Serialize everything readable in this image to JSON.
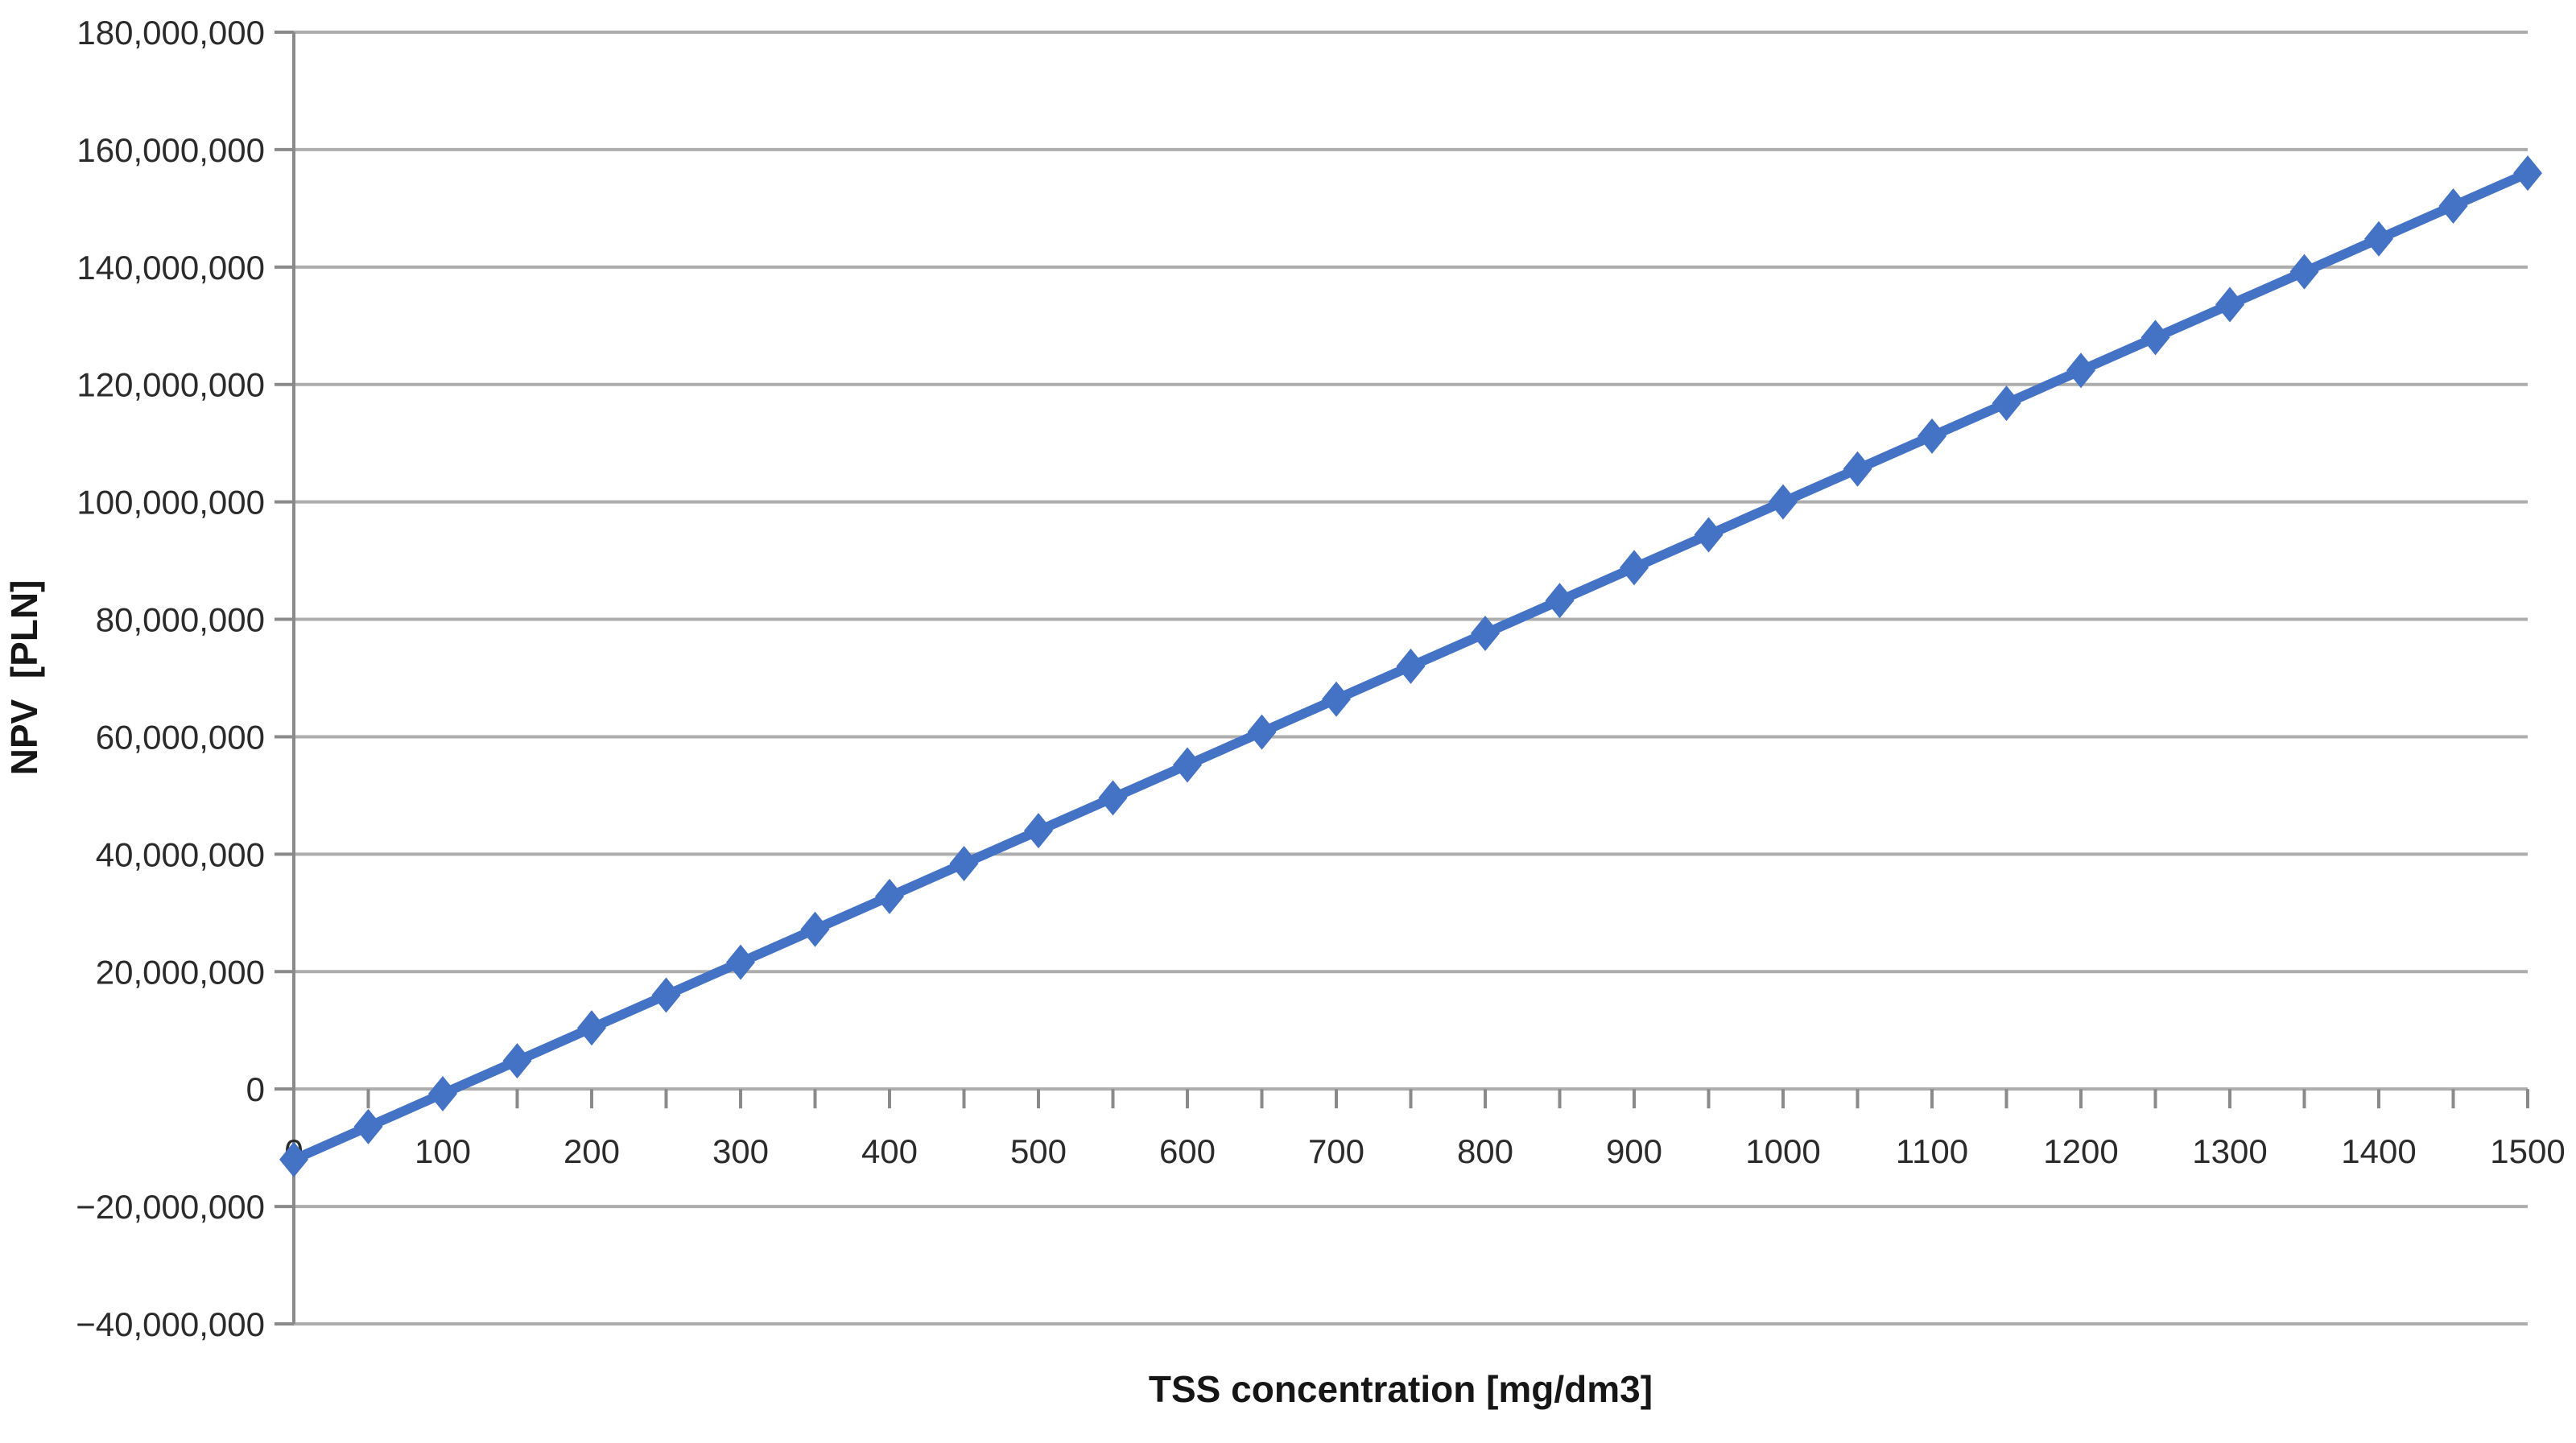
{
  "chart_data": {
    "type": "line",
    "title": "",
    "xlabel": "TSS concentration [mg/dm3]",
    "ylabel": "NPV  [PLN]",
    "x": [
      0,
      50,
      100,
      150,
      200,
      250,
      300,
      350,
      400,
      450,
      500,
      550,
      600,
      650,
      700,
      750,
      800,
      850,
      900,
      950,
      1000,
      1050,
      1100,
      1150,
      1200,
      1250,
      1300,
      1350,
      1400,
      1450,
      1500
    ],
    "series": [
      {
        "name": "NPV",
        "values": [
          -12000000,
          -6400000,
          -800000,
          4800000,
          10400000,
          16000000,
          21600000,
          27200000,
          32800000,
          38400000,
          44000000,
          49600000,
          55200000,
          60800000,
          66400000,
          72000000,
          77600000,
          83200000,
          88800000,
          94400000,
          100000000,
          105600000,
          111200000,
          116800000,
          122400000,
          128000000,
          133600000,
          139200000,
          144800000,
          150400000,
          156000000
        ]
      }
    ],
    "xlim": [
      0,
      1500
    ],
    "ylim": [
      -40000000,
      180000000
    ],
    "y_tick_step": 20000000,
    "x_label_step": 100,
    "x_minor_tick_step": 50,
    "y_tick_labels": [
      "180,000,000",
      "160,000,000",
      "140,000,000",
      "120,000,000",
      "100,000,000",
      "80,000,000",
      "60,000,000",
      "40,000,000",
      "20,000,000",
      "0",
      "−20,000,000",
      "−40,000,000"
    ],
    "x_tick_labels": [
      "0",
      "100",
      "200",
      "300",
      "400",
      "500",
      "600",
      "700",
      "800",
      "900",
      "1000",
      "1100",
      "1200",
      "1300",
      "1400",
      "1500"
    ],
    "grid": "horizontal",
    "legend_position": "none",
    "marker": "diamond",
    "colors": {
      "series": "#4472C4",
      "gridline": "#ADADAD",
      "axis": "#8A8A8A",
      "tick_text": "#2B2B2B",
      "title_text": "#161616",
      "background": "#FFFFFF"
    }
  }
}
